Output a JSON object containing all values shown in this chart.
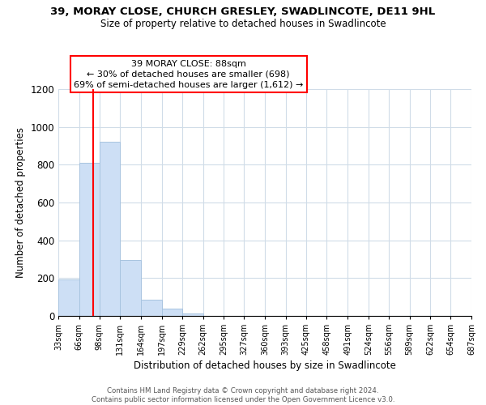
{
  "title": "39, MORAY CLOSE, CHURCH GRESLEY, SWADLINCOTE, DE11 9HL",
  "subtitle": "Size of property relative to detached houses in Swadlincote",
  "xlabel": "Distribution of detached houses by size in Swadlincote",
  "ylabel": "Number of detached properties",
  "bin_edges": [
    33,
    66,
    98,
    131,
    164,
    197,
    229,
    262,
    295,
    327,
    360,
    393,
    425,
    458,
    491,
    524,
    556,
    589,
    622,
    654,
    687
  ],
  "bar_heights": [
    195,
    810,
    920,
    295,
    85,
    38,
    15,
    0,
    0,
    0,
    0,
    0,
    0,
    0,
    0,
    0,
    0,
    0,
    0,
    0
  ],
  "bar_color": "#cddff5",
  "bar_edge_color": "#a8c4e0",
  "property_line_x": 88,
  "property_line_color": "red",
  "ylim": [
    0,
    1200
  ],
  "yticks": [
    0,
    200,
    400,
    600,
    800,
    1000,
    1200
  ],
  "xtick_labels": [
    "33sqm",
    "66sqm",
    "98sqm",
    "131sqm",
    "164sqm",
    "197sqm",
    "229sqm",
    "262sqm",
    "295sqm",
    "327sqm",
    "360sqm",
    "393sqm",
    "425sqm",
    "458sqm",
    "491sqm",
    "524sqm",
    "556sqm",
    "589sqm",
    "622sqm",
    "654sqm",
    "687sqm"
  ],
  "annotation_title": "39 MORAY CLOSE: 88sqm",
  "annotation_line1": "← 30% of detached houses are smaller (698)",
  "annotation_line2": "69% of semi-detached houses are larger (1,612) →",
  "footer_line1": "Contains HM Land Registry data © Crown copyright and database right 2024.",
  "footer_line2": "Contains public sector information licensed under the Open Government Licence v3.0.",
  "grid_color": "#d0dce8",
  "background_color": "#ffffff"
}
